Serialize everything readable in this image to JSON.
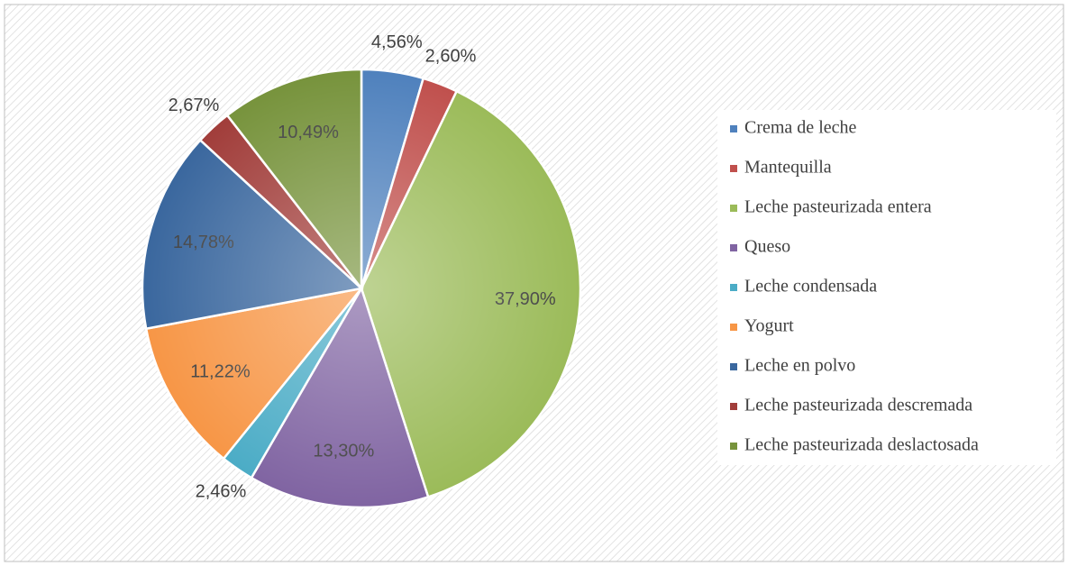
{
  "chart_data": {
    "type": "pie",
    "categories": [
      "Crema de leche",
      "Mantequilla",
      "Leche pasteurizada entera",
      "Queso",
      "Leche condensada",
      "Yogurt",
      "Leche en polvo",
      "Leche pasteurizada descremada",
      "Leche pasteurizada deslactosada"
    ],
    "values": [
      4.56,
      2.6,
      37.9,
      13.3,
      2.46,
      11.22,
      14.78,
      2.67,
      10.49
    ],
    "value_labels": [
      "4,56%",
      "2,60%",
      "37,90%",
      "13,30%",
      "2,46%",
      "11,22%",
      "14,78%",
      "2,67%",
      "10,49%"
    ],
    "colors": [
      "#4f81bd",
      "#c0504d",
      "#9bbb59",
      "#8064a2",
      "#4bacc6",
      "#f79646",
      "#3a679e",
      "#a13d3a",
      "#77933c"
    ],
    "legend": "right"
  }
}
